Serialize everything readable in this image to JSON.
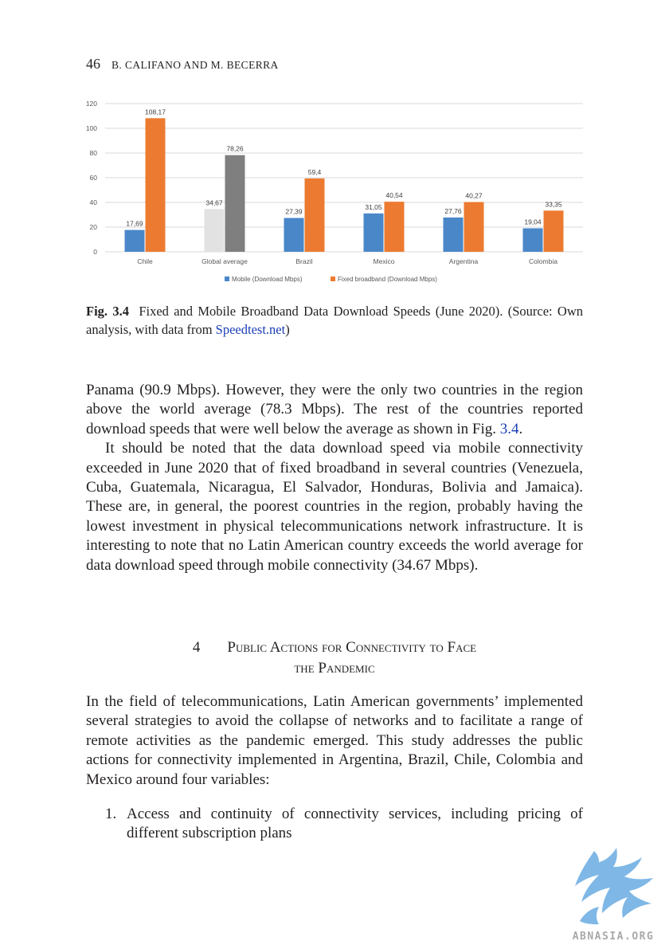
{
  "running_head": {
    "page_number": "46",
    "authors": "B. CALIFANO AND M. BECERRA"
  },
  "chart_data": {
    "type": "bar",
    "categories": [
      "Chile",
      "Global average",
      "Brazil",
      "Mexico",
      "Argentina",
      "Colombia"
    ],
    "series": [
      {
        "name": "Mobile (Download Mbps)",
        "color": "#4a87c9",
        "values": [
          17.69,
          34.67,
          27.39,
          31.05,
          27.76,
          19.04
        ],
        "labels": [
          "17,69",
          "34,67",
          "27,39",
          "31,05",
          "27,76",
          "19,04"
        ]
      },
      {
        "name": "Fixed broadband (Download Mbps)",
        "color": "#ec7b31",
        "values": [
          108.17,
          78.26,
          59.4,
          40.54,
          40.27,
          33.35
        ],
        "labels": [
          "108,17",
          "78,26",
          "59,4",
          "40,54",
          "40,27",
          "33,35"
        ]
      }
    ],
    "highlight_colors": {
      "global_mobile": "#e2e2e2",
      "global_fixed": "#7f7f7f"
    },
    "yticks": [
      "0",
      "20",
      "40",
      "60",
      "80",
      "100",
      "120"
    ],
    "ylim": [
      0,
      120
    ],
    "grid": true,
    "legend_position": "bottom"
  },
  "caption": {
    "label": "Fig. 3.4",
    "text_before_link": "Fixed and Mobile Broadband Data Download Speeds (June 2020). (Source: Own analysis, with data from ",
    "link_text": "Speedtest.net",
    "text_after_link": ")"
  },
  "body": {
    "p1_before_ref": "Panama (90.9 Mbps). However, they were the only two countries in the region above the world average (78.3 Mbps). The rest of the countries reported download speeds that were well below the average as shown in Fig. ",
    "p1_ref": "3.4",
    "p1_after_ref": ".",
    "p2": "It should be noted that the data download speed via mobile connectivity exceeded in June 2020 that of fixed broadband in several countries (Venezuela, Cuba, Guatemala, Nicaragua, El Salvador, Honduras, Bolivia and Jamaica). These are, in general, the poorest countries in the region, probably having the lowest investment in physical telecommunications network infrastructure. It is interesting to note that no Latin American country exceeds the world average for data download speed through mobile connectivity (34.67 Mbps)."
  },
  "section": {
    "number": "4",
    "title_line1": "Public Actions for Connectivity to Face",
    "title_line2": "the Pandemic"
  },
  "body2": {
    "p1": "In the field of telecommunications, Latin American governments’ implemented several strategies to avoid the collapse of networks and to facilitate a range of remote activities as the pandemic emerged. This study addresses the public actions for connectivity implemented in Argentina, Brazil, Chile, Colombia and Mexico around four variables:"
  },
  "list": {
    "items": [
      {
        "marker": "1.",
        "text": "Access and continuity of connectivity services, including pricing of different subscription plans"
      }
    ]
  },
  "watermark": {
    "text": "ABNASIA.ORG",
    "colors": {
      "bird": "#7fb7e6",
      "text": "#a9a9a9"
    }
  }
}
